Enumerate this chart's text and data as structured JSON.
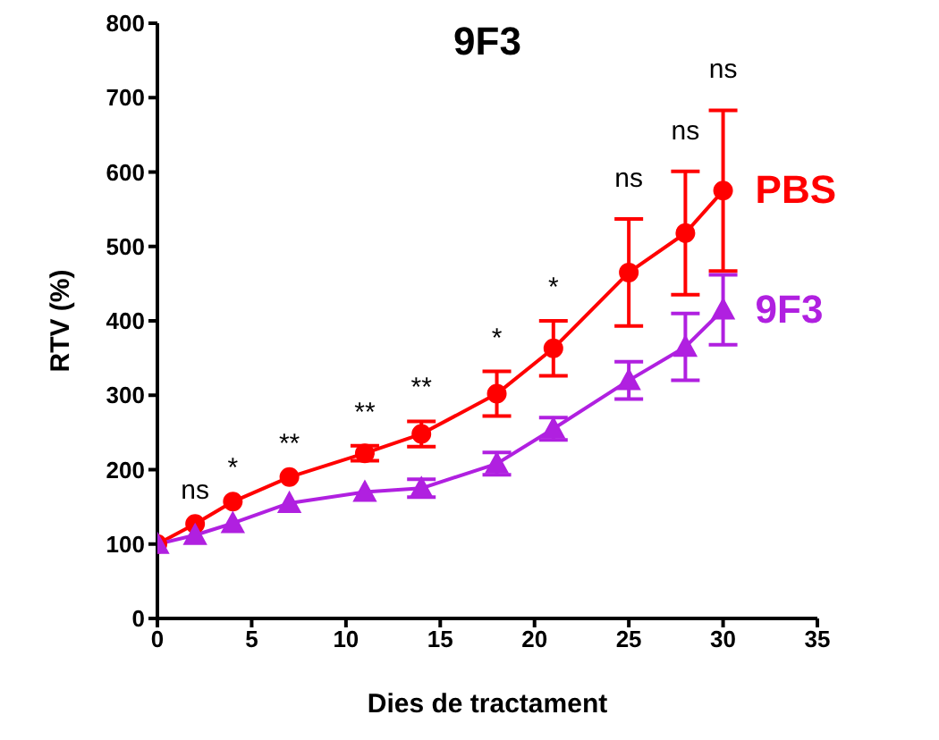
{
  "chart_data": {
    "type": "line",
    "title": "9F3",
    "xlabel": "Dies de tractament",
    "ylabel": "RTV (%)",
    "x": [
      0,
      2,
      4,
      7,
      11,
      14,
      18,
      21,
      25,
      28,
      30
    ],
    "series": [
      {
        "name": "PBS",
        "color": "#ff0000",
        "marker": "circle",
        "values": [
          100,
          127,
          157,
          190,
          222,
          248,
          302,
          363,
          465,
          518,
          575
        ],
        "errors": [
          null,
          null,
          null,
          null,
          10,
          17,
          30,
          37,
          72,
          83,
          108
        ]
      },
      {
        "name": "9F3",
        "color": "#b020e0",
        "marker": "triangle",
        "values": [
          100,
          112,
          128,
          155,
          170,
          175,
          208,
          255,
          320,
          365,
          415
        ],
        "errors": [
          null,
          null,
          null,
          null,
          null,
          12,
          15,
          15,
          25,
          45,
          47
        ]
      }
    ],
    "xlim": [
      0,
      35
    ],
    "xticks": [
      0,
      5,
      10,
      15,
      20,
      25,
      30,
      35
    ],
    "ylim": [
      0,
      800
    ],
    "yticks": [
      0,
      100,
      200,
      300,
      400,
      500,
      600,
      700,
      800
    ],
    "grid": false,
    "legend": false,
    "annotations": [
      "ns",
      "*",
      "**",
      "**",
      "**",
      "*",
      "*",
      "ns",
      "ns",
      "ns"
    ]
  }
}
